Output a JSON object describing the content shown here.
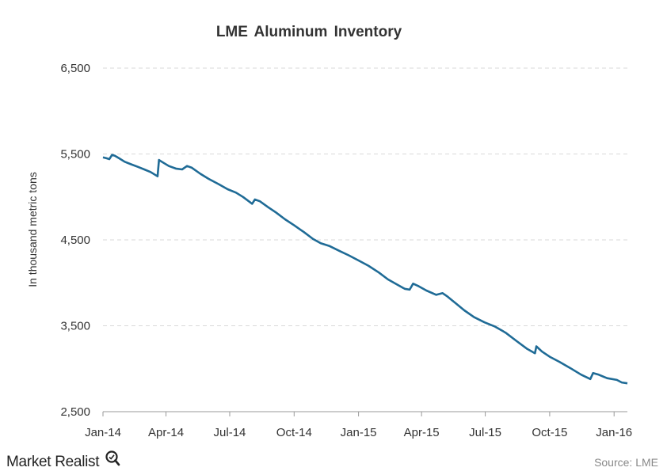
{
  "chart_data": {
    "type": "line",
    "title": "LME Aluminum Inventory",
    "xlabel": "",
    "ylabel": "In thousand metric tons",
    "ylim": [
      2500,
      6500
    ],
    "yticks": [
      "2,500",
      "3,500",
      "4,500",
      "5,500",
      "6,500"
    ],
    "ytick_values": [
      2500,
      3500,
      4500,
      5500,
      6500
    ],
    "xticks": [
      "Jan-14",
      "Apr-14",
      "Jul-14",
      "Oct-14",
      "Jan-15",
      "Apr-15",
      "Jul-15",
      "Oct-15",
      "Jan-16"
    ],
    "xtick_dates": [
      "2014-01-01",
      "2014-04-01",
      "2014-07-01",
      "2014-10-01",
      "2015-01-01",
      "2015-04-01",
      "2015-07-01",
      "2015-10-01",
      "2016-01-01"
    ],
    "xlim": [
      "2014-01-01",
      "2016-01-20"
    ],
    "grid": true,
    "legend": "none",
    "series": [
      {
        "color": "#1f6b96",
        "points": [
          [
            "2014-01-01",
            5460
          ],
          [
            "2014-01-06",
            5450
          ],
          [
            "2014-01-10",
            5440
          ],
          [
            "2014-01-14",
            5490
          ],
          [
            "2014-01-18",
            5480
          ],
          [
            "2014-01-24",
            5450
          ],
          [
            "2014-02-01",
            5410
          ],
          [
            "2014-02-10",
            5380
          ],
          [
            "2014-02-20",
            5350
          ],
          [
            "2014-03-01",
            5320
          ],
          [
            "2014-03-10",
            5290
          ],
          [
            "2014-03-20",
            5240
          ],
          [
            "2014-03-22",
            5430
          ],
          [
            "2014-03-26",
            5410
          ],
          [
            "2014-04-05",
            5360
          ],
          [
            "2014-04-15",
            5330
          ],
          [
            "2014-04-24",
            5320
          ],
          [
            "2014-05-01",
            5360
          ],
          [
            "2014-05-08",
            5340
          ],
          [
            "2014-05-20",
            5270
          ],
          [
            "2014-06-01",
            5210
          ],
          [
            "2014-06-15",
            5150
          ],
          [
            "2014-06-28",
            5090
          ],
          [
            "2014-07-10",
            5050
          ],
          [
            "2014-07-20",
            5000
          ],
          [
            "2014-08-02",
            4920
          ],
          [
            "2014-08-06",
            4970
          ],
          [
            "2014-08-13",
            4950
          ],
          [
            "2014-08-25",
            4880
          ],
          [
            "2014-09-05",
            4820
          ],
          [
            "2014-09-18",
            4740
          ],
          [
            "2014-10-01",
            4670
          ],
          [
            "2014-10-15",
            4590
          ],
          [
            "2014-10-28",
            4510
          ],
          [
            "2014-11-08",
            4460
          ],
          [
            "2014-11-20",
            4430
          ],
          [
            "2014-12-05",
            4370
          ],
          [
            "2014-12-18",
            4320
          ],
          [
            "2015-01-01",
            4260
          ],
          [
            "2015-01-15",
            4200
          ],
          [
            "2015-01-30",
            4120
          ],
          [
            "2015-02-12",
            4040
          ],
          [
            "2015-02-25",
            3980
          ],
          [
            "2015-03-08",
            3930
          ],
          [
            "2015-03-15",
            3920
          ],
          [
            "2015-03-20",
            3990
          ],
          [
            "2015-03-28",
            3960
          ],
          [
            "2015-04-08",
            3910
          ],
          [
            "2015-04-22",
            3860
          ],
          [
            "2015-05-01",
            3880
          ],
          [
            "2015-05-08",
            3840
          ],
          [
            "2015-05-20",
            3760
          ],
          [
            "2015-06-01",
            3680
          ],
          [
            "2015-06-15",
            3600
          ],
          [
            "2015-06-30",
            3540
          ],
          [
            "2015-07-15",
            3490
          ],
          [
            "2015-07-30",
            3420
          ],
          [
            "2015-08-15",
            3320
          ],
          [
            "2015-08-30",
            3230
          ],
          [
            "2015-09-10",
            3180
          ],
          [
            "2015-09-12",
            3260
          ],
          [
            "2015-09-20",
            3200
          ],
          [
            "2015-10-01",
            3140
          ],
          [
            "2015-10-15",
            3080
          ],
          [
            "2015-10-30",
            3010
          ],
          [
            "2015-11-15",
            2930
          ],
          [
            "2015-11-28",
            2880
          ],
          [
            "2015-12-02",
            2950
          ],
          [
            "2015-12-10",
            2930
          ],
          [
            "2015-12-22",
            2890
          ],
          [
            "2016-01-05",
            2870
          ],
          [
            "2016-01-12",
            2840
          ],
          [
            "2016-01-20",
            2830
          ]
        ]
      }
    ]
  },
  "footer": {
    "brand": "Market Realist",
    "source": "Source: LME",
    "brand_icon": "magnifier-q-icon"
  }
}
